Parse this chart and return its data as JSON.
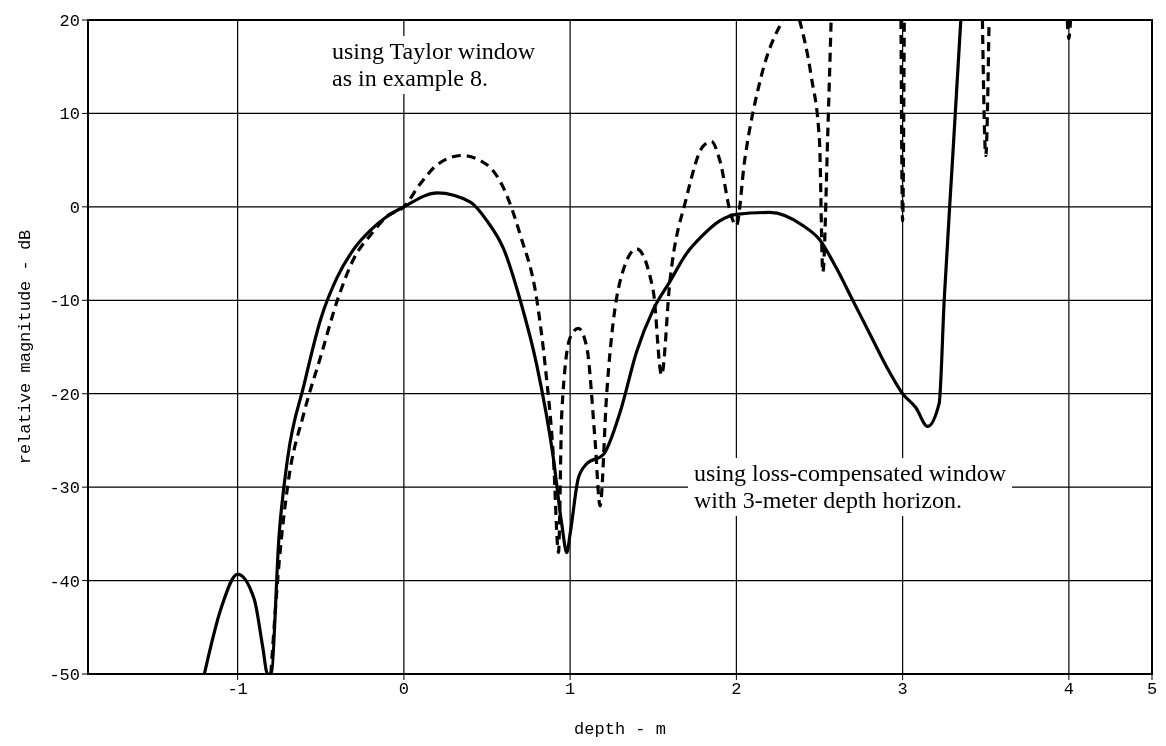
{
  "chart_data": {
    "type": "line",
    "xlabel": "depth - m",
    "ylabel": "relative magnitude - dB",
    "xlim": [
      -1.9,
      4.5
    ],
    "ylim": [
      -50,
      20
    ],
    "xticks": [
      -1,
      0,
      1,
      2,
      3,
      4,
      {
        "value": 4.5,
        "label": "5"
      }
    ],
    "yticks": [
      -50,
      -40,
      -30,
      -20,
      -10,
      0,
      10,
      20
    ],
    "grid": true,
    "marker": "none",
    "annotations": [
      "using Taylor window\nas in example 8.",
      "using loss-compensated window\nwith 3-meter depth horizon."
    ],
    "series": [
      {
        "color": "#000000",
        "line_style": "dashed",
        "x": [
          -0.8,
          -0.75,
          -0.7,
          -0.6,
          -0.5,
          -0.4,
          -0.3,
          -0.2,
          -0.1,
          0,
          0.1,
          0.2,
          0.35,
          0.5,
          0.6,
          0.7,
          0.8,
          0.85,
          0.9,
          0.93,
          0.95,
          1.0,
          1.05,
          1.1,
          1.15,
          1.18,
          1.22,
          1.3,
          1.4,
          1.5,
          1.55,
          1.6,
          1.7,
          1.8,
          1.85,
          1.9,
          1.97,
          2.0,
          2.05,
          2.15,
          2.28,
          2.3,
          2.38,
          2.45,
          2.5,
          2.52,
          2.55,
          2.57,
          2.6,
          2.99,
          3.0,
          3.01,
          3.2,
          3.48,
          3.5,
          3.52,
          3.7,
          3.99,
          4.0,
          4.01
        ],
        "values": [
          -50,
          -38,
          -30,
          -22,
          -16,
          -10,
          -5.5,
          -3,
          -1,
          0,
          2.5,
          4.5,
          5.5,
          4.5,
          2,
          -3,
          -10,
          -17,
          -27,
          -37,
          -22,
          -14,
          -13,
          -15,
          -25,
          -32,
          -20,
          -8,
          -4.5,
          -9,
          -18,
          -8,
          1,
          6.5,
          7,
          5,
          -1,
          -2,
          5,
          14,
          20,
          null,
          20,
          14,
          7,
          -7,
          8,
          20,
          null,
          20,
          -1.5,
          20,
          null,
          20,
          5.5,
          20,
          null,
          20,
          18,
          20
        ]
      },
      {
        "color": "#000000",
        "line_style": "solid",
        "x": [
          -1.2,
          -1.1,
          -1.0,
          -0.9,
          -0.85,
          -0.82,
          -0.8,
          -0.75,
          -0.7,
          -0.6,
          -0.5,
          -0.4,
          -0.3,
          -0.2,
          -0.1,
          0,
          0.2,
          0.4,
          0.5,
          0.6,
          0.7,
          0.8,
          0.9,
          0.95,
          0.98,
          1.0,
          1.05,
          1.1,
          1.2,
          1.3,
          1.4,
          1.5,
          1.6,
          1.7,
          1.8,
          1.9,
          2.0,
          2.2,
          2.4,
          2.5,
          2.6,
          2.7,
          2.8,
          2.9,
          3.0,
          3.08,
          3.15,
          3.22,
          3.25,
          3.3,
          3.35
        ],
        "values": [
          -50,
          -43,
          -39.3,
          -42,
          -47,
          -50,
          -50,
          -35,
          -27,
          -19,
          -12,
          -7.5,
          -4.5,
          -2.5,
          -1,
          0,
          1.5,
          0.5,
          -1.5,
          -4.5,
          -10,
          -17,
          -27,
          -34,
          -37,
          -35,
          -29,
          -27.5,
          -26.5,
          -22,
          -15.5,
          -11,
          -8,
          -5,
          -3,
          -1.5,
          -0.8,
          -0.6,
          -2,
          -3.5,
          -6.5,
          -10,
          -13.5,
          -17,
          -20,
          -21.5,
          -23.5,
          -21,
          -10,
          5,
          20
        ]
      }
    ]
  }
}
